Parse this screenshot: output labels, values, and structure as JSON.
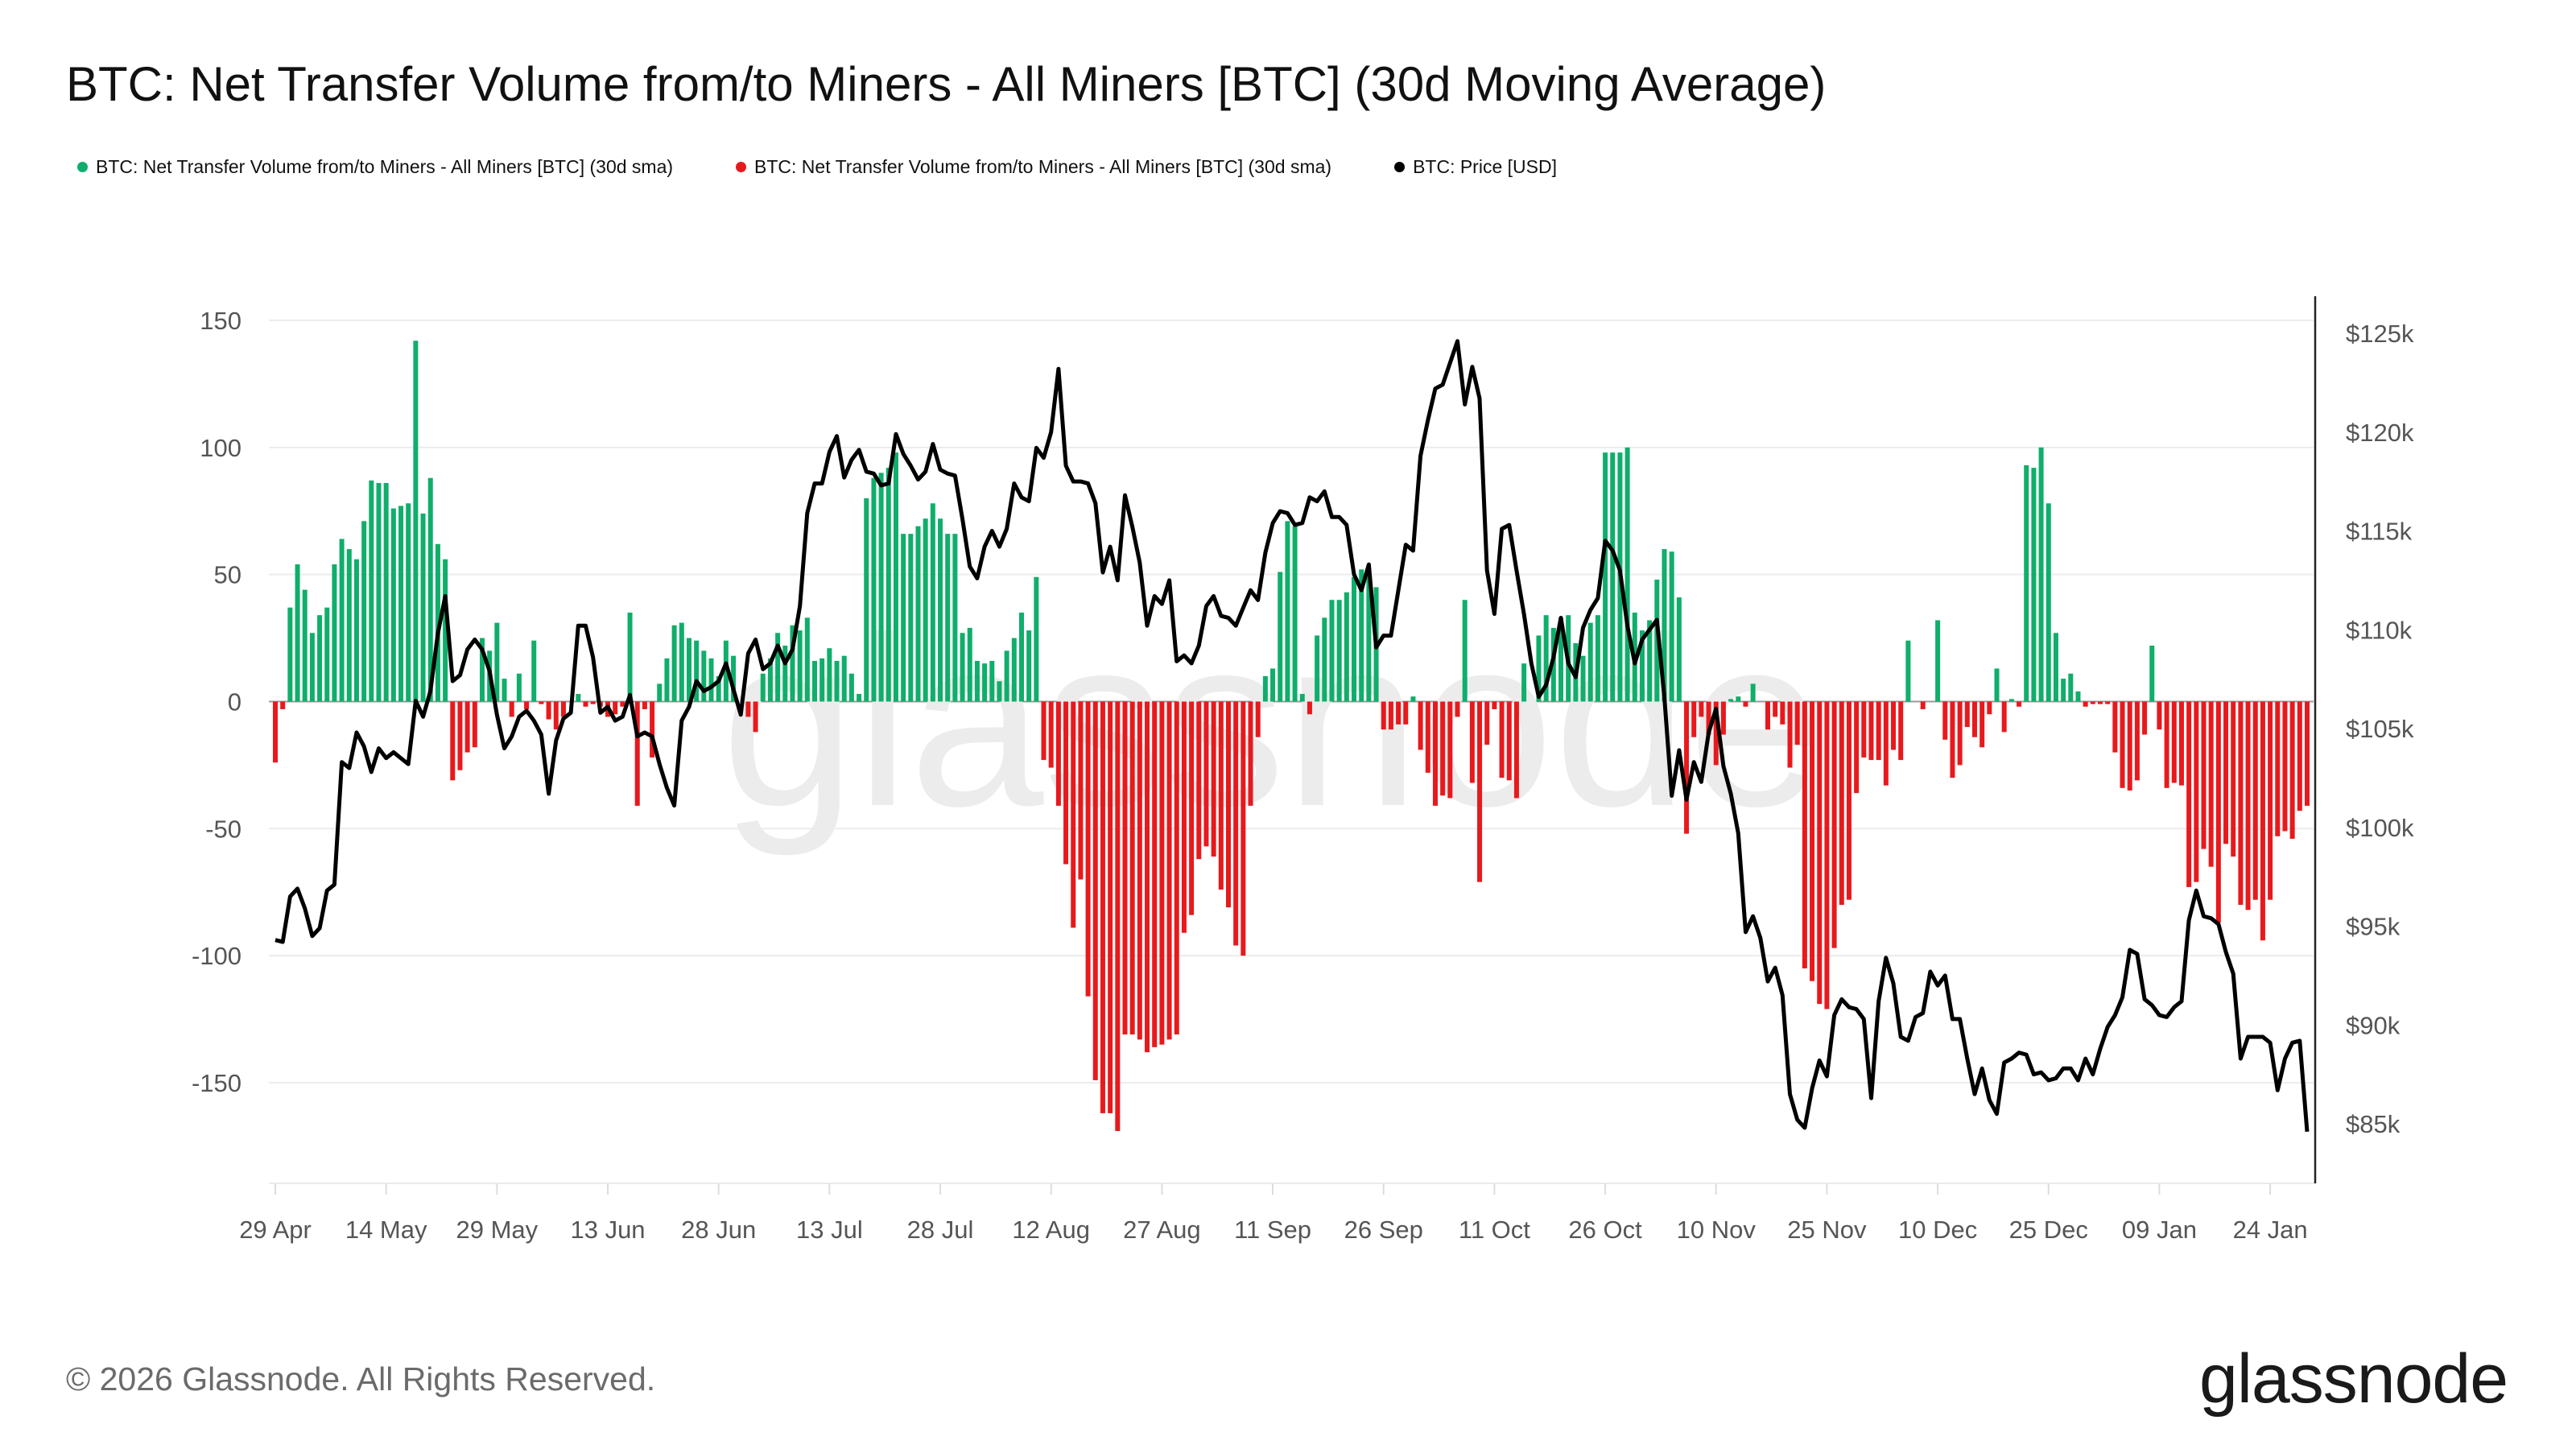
{
  "title": "BTC: Net Transfer Volume from/to Miners - All Miners [BTC] (30d Moving Average)",
  "legend": [
    {
      "label": "BTC: Net Transfer Volume from/to Miners - All Miners [BTC] (30d sma)",
      "color": "#0fae6b"
    },
    {
      "label": "BTC: Net Transfer Volume from/to Miners - All Miners [BTC] (30d sma)",
      "color": "#e8191c"
    },
    {
      "label": "BTC: Price [USD]",
      "color": "#000000"
    }
  ],
  "watermark": "glassnode",
  "footer": "© 2026 Glassnode. All Rights Reserved.",
  "logo": "glassnode",
  "chart_data": {
    "type": "bar+line",
    "title": "BTC: Net Transfer Volume from/to Miners - All Miners [BTC] (30d Moving Average)",
    "grid": true,
    "legend_position": "top-left",
    "x_tick_labels": [
      "29 Apr",
      "14 May",
      "29 May",
      "13 Jun",
      "28 Jun",
      "13 Jul",
      "28 Jul",
      "12 Aug",
      "27 Aug",
      "11 Sep",
      "26 Sep",
      "11 Oct",
      "26 Oct",
      "10 Nov",
      "25 Nov",
      "10 Dec",
      "25 Dec",
      "09 Jan",
      "24 Jan"
    ],
    "y_left": {
      "ticks": [
        150,
        100,
        50,
        0,
        -50,
        -100,
        -150
      ],
      "range": [
        -190,
        150
      ]
    },
    "y_right": {
      "ticks": [
        125000,
        120000,
        115000,
        110000,
        105000,
        100000,
        95000,
        90000,
        85000
      ],
      "tick_labels": [
        "$125k",
        "$120k",
        "$115k",
        "$110k",
        "$105k",
        "$100k",
        "$95k",
        "$90k",
        "$85k"
      ],
      "range": [
        84000,
        126000
      ]
    },
    "positive_color": "#0fae6b",
    "negative_color": "#e8191c",
    "price_color": "#000000",
    "dates": [
      "2025-04-29",
      "2025-04-30",
      "2025-05-01",
      "2025-05-02",
      "2025-05-03",
      "2025-05-04",
      "2025-05-05",
      "2025-05-06",
      "2025-05-07",
      "2025-05-08",
      "2025-05-09",
      "2025-05-10",
      "2025-05-11",
      "2025-05-12",
      "2025-05-13",
      "2025-05-14",
      "2025-05-15",
      "2025-05-16",
      "2025-05-17",
      "2025-05-18",
      "2025-05-19",
      "2025-05-20",
      "2025-05-21",
      "2025-05-22",
      "2025-05-23",
      "2025-05-24",
      "2025-05-25",
      "2025-05-26",
      "2025-05-27",
      "2025-05-28",
      "2025-05-29",
      "2025-05-30",
      "2025-05-31",
      "2025-06-01",
      "2025-06-02",
      "2025-06-03",
      "2025-06-04",
      "2025-06-05",
      "2025-06-06",
      "2025-06-07",
      "2025-06-08",
      "2025-06-09",
      "2025-06-10",
      "2025-06-11",
      "2025-06-12",
      "2025-06-13",
      "2025-06-14",
      "2025-06-15",
      "2025-06-16",
      "2025-06-17",
      "2025-06-18",
      "2025-06-19",
      "2025-06-20",
      "2025-06-21",
      "2025-06-22",
      "2025-06-23",
      "2025-06-24",
      "2025-06-25",
      "2025-06-26",
      "2025-06-27",
      "2025-06-28",
      "2025-06-29",
      "2025-06-30",
      "2025-07-01",
      "2025-07-02",
      "2025-07-03",
      "2025-07-04",
      "2025-07-05",
      "2025-07-06",
      "2025-07-07",
      "2025-07-08",
      "2025-07-09",
      "2025-07-10",
      "2025-07-11",
      "2025-07-12",
      "2025-07-13",
      "2025-07-14",
      "2025-07-15",
      "2025-07-16",
      "2025-07-17",
      "2025-07-18",
      "2025-07-19",
      "2025-07-20",
      "2025-07-21",
      "2025-07-22",
      "2025-07-23",
      "2025-07-24",
      "2025-07-25",
      "2025-07-26",
      "2025-07-27",
      "2025-07-28",
      "2025-07-29",
      "2025-07-30",
      "2025-07-31",
      "2025-08-01",
      "2025-08-02",
      "2025-08-03",
      "2025-08-04",
      "2025-08-05",
      "2025-08-06",
      "2025-08-07",
      "2025-08-08",
      "2025-08-09",
      "2025-08-10",
      "2025-08-11",
      "2025-08-12",
      "2025-08-13",
      "2025-08-14",
      "2025-08-15",
      "2025-08-16",
      "2025-08-17",
      "2025-08-18",
      "2025-08-19",
      "2025-08-20",
      "2025-08-21",
      "2025-08-22",
      "2025-08-23",
      "2025-08-24",
      "2025-08-25",
      "2025-08-26",
      "2025-08-27",
      "2025-08-28",
      "2025-08-29",
      "2025-08-30",
      "2025-08-31",
      "2025-09-01",
      "2025-09-02",
      "2025-09-03",
      "2025-09-04",
      "2025-09-05",
      "2025-09-06",
      "2025-09-07",
      "2025-09-08",
      "2025-09-09",
      "2025-09-10",
      "2025-09-11",
      "2025-09-12",
      "2025-09-13",
      "2025-09-14",
      "2025-09-15",
      "2025-09-16",
      "2025-09-17",
      "2025-09-18",
      "2025-09-19",
      "2025-09-20",
      "2025-09-21",
      "2025-09-22",
      "2025-09-23",
      "2025-09-24",
      "2025-09-25",
      "2025-09-26",
      "2025-09-27",
      "2025-09-28",
      "2025-09-29",
      "2025-09-30",
      "2025-10-01",
      "2025-10-02",
      "2025-10-03",
      "2025-10-04",
      "2025-10-05",
      "2025-10-06",
      "2025-10-07",
      "2025-10-08",
      "2025-10-09",
      "2025-10-10",
      "2025-10-11",
      "2025-10-12",
      "2025-10-13",
      "2025-10-14",
      "2025-10-15",
      "2025-10-16",
      "2025-10-17",
      "2025-10-18",
      "2025-10-19",
      "2025-10-20",
      "2025-10-21",
      "2025-10-22",
      "2025-10-23",
      "2025-10-24",
      "2025-10-25",
      "2025-10-26",
      "2025-10-27",
      "2025-10-28",
      "2025-10-29",
      "2025-10-30",
      "2025-10-31",
      "2025-11-01",
      "2025-11-02",
      "2025-11-03",
      "2025-11-04",
      "2025-11-05",
      "2025-11-06",
      "2025-11-07",
      "2025-11-08",
      "2025-11-09",
      "2025-11-10",
      "2025-11-11",
      "2025-11-12",
      "2025-11-13",
      "2025-11-14",
      "2025-11-15",
      "2025-11-16",
      "2025-11-17",
      "2025-11-18",
      "2025-11-19",
      "2025-11-20",
      "2025-11-21",
      "2025-11-22",
      "2025-11-23",
      "2025-11-24",
      "2025-11-25",
      "2025-11-26",
      "2025-11-27",
      "2025-11-28",
      "2025-11-29",
      "2025-11-30",
      "2025-12-01",
      "2025-12-02",
      "2025-12-03",
      "2025-12-04",
      "2025-12-05",
      "2025-12-06",
      "2025-12-07",
      "2025-12-08",
      "2025-12-09",
      "2025-12-10",
      "2025-12-11",
      "2025-12-12",
      "2025-12-13",
      "2025-12-14",
      "2025-12-15",
      "2025-12-16",
      "2025-12-17",
      "2025-12-18",
      "2025-12-19",
      "2025-12-20",
      "2025-12-21",
      "2025-12-22",
      "2025-12-23",
      "2025-12-24",
      "2025-12-25",
      "2025-12-26",
      "2025-12-27",
      "2025-12-28",
      "2025-12-29",
      "2025-12-30",
      "2025-12-31",
      "2026-01-01",
      "2026-01-02",
      "2026-01-03",
      "2026-01-04",
      "2026-01-05",
      "2026-01-06",
      "2026-01-07",
      "2026-01-08",
      "2026-01-09",
      "2026-01-10",
      "2026-01-11",
      "2026-01-12",
      "2026-01-13",
      "2026-01-14",
      "2026-01-15",
      "2026-01-16",
      "2026-01-17",
      "2026-01-18",
      "2026-01-19",
      "2026-01-20",
      "2026-01-21",
      "2026-01-22",
      "2026-01-23",
      "2026-01-24",
      "2026-01-25",
      "2026-01-26",
      "2026-01-27",
      "2026-01-28",
      "2026-01-29"
    ],
    "net_transfer_volume_btc": [
      -24,
      -3,
      37,
      54,
      44,
      27,
      34,
      37,
      54,
      64,
      60,
      56,
      71,
      87,
      86,
      86,
      76,
      77,
      78,
      142,
      74,
      88,
      62,
      56,
      -31,
      -27,
      -20,
      -18,
      25,
      20,
      31,
      9,
      -6,
      11,
      -3,
      24,
      -1,
      -7,
      -11,
      -6,
      0,
      3,
      -2,
      -1,
      -2,
      -6,
      -5,
      -2,
      35,
      -41,
      -3,
      -22,
      7,
      17,
      30,
      31,
      25,
      24,
      20,
      17,
      10,
      24,
      18,
      0,
      -6,
      -12,
      11,
      17,
      27,
      22,
      30,
      28,
      33,
      16,
      17,
      21,
      16,
      18,
      11,
      3,
      80,
      88,
      90,
      92,
      98,
      66,
      66,
      69,
      72,
      78,
      72,
      66,
      66,
      27,
      29,
      16,
      15,
      16,
      8,
      20,
      25,
      35,
      28,
      49,
      -23,
      -26,
      -41,
      -64,
      -89,
      -70,
      -116,
      -149,
      -162,
      -162,
      -169,
      -131,
      -131,
      -133,
      -138,
      -136,
      -135,
      -133,
      -131,
      -91,
      -84,
      -62,
      -57,
      -61,
      -74,
      -81,
      -96,
      -100,
      -41,
      -14,
      10,
      13,
      51,
      71,
      69,
      3,
      -5,
      26,
      33,
      40,
      40,
      43,
      49,
      52,
      52,
      45,
      -11,
      -11,
      -9,
      -9,
      2,
      -19,
      -28,
      -41,
      -37,
      -38,
      -6,
      40,
      -32,
      -71,
      -17,
      -3,
      -30,
      -31,
      -38,
      15,
      0,
      26,
      34,
      29,
      33,
      34,
      23,
      18,
      31,
      34,
      98,
      98,
      98,
      100,
      35,
      28,
      32,
      48,
      60,
      59,
      41,
      -52,
      -14,
      -6,
      -13,
      -25,
      -13,
      1,
      2,
      -2,
      7,
      0,
      -11,
      -6,
      -9,
      -26,
      -17,
      -105,
      -110,
      -119,
      -121,
      -97,
      -80,
      -78,
      -36,
      -22,
      -23,
      -23,
      -33,
      -19,
      -23,
      24,
      0,
      -3,
      0,
      32,
      -15,
      -30,
      -25,
      -10,
      -14,
      -18,
      -5,
      13,
      -12,
      1,
      -2,
      93,
      92,
      100,
      78,
      27,
      9,
      11,
      4,
      -2,
      -1,
      -1,
      -1,
      -20,
      -34,
      -35,
      -31,
      -13,
      22,
      -11,
      -34,
      -32,
      -33,
      -73,
      -71,
      -58,
      -65,
      -87,
      -56,
      -61,
      -80,
      -82,
      -78,
      -94,
      -78,
      -53,
      -51,
      -54,
      -43,
      -41
    ],
    "price_usd": [
      94300,
      94200,
      96500,
      96900,
      95900,
      94500,
      94900,
      96800,
      97100,
      103300,
      103000,
      104800,
      104100,
      102800,
      104000,
      103500,
      103800,
      103500,
      103200,
      106400,
      105600,
      106900,
      109800,
      111700,
      107400,
      107700,
      109000,
      109500,
      109000,
      107900,
      105700,
      104000,
      104600,
      105600,
      105900,
      105400,
      104700,
      101700,
      104400,
      105500,
      105800,
      110200,
      110200,
      108600,
      105800,
      106100,
      105400,
      105600,
      106700,
      104600,
      104800,
      104600,
      103200,
      102000,
      101100,
      105400,
      106100,
      107400,
      106900,
      107100,
      107400,
      108300,
      107000,
      105700,
      108800,
      109500,
      108000,
      108300,
      109200,
      108300,
      109000,
      111200,
      115900,
      117400,
      117400,
      119000,
      119800,
      117700,
      118600,
      119100,
      118000,
      117900,
      117300,
      117400,
      119900,
      118900,
      118300,
      117600,
      118000,
      119400,
      118100,
      117900,
      117800,
      115600,
      113200,
      112600,
      114200,
      115000,
      114200,
      115100,
      117400,
      116700,
      116500,
      119200,
      118700,
      120000,
      123200,
      118300,
      117500,
      117500,
      117400,
      116400,
      112900,
      114200,
      112500,
      116800,
      115200,
      113400,
      110200,
      111700,
      111300,
      112500,
      108400,
      108700,
      108300,
      109200,
      111200,
      111700,
      110700,
      110600,
      110200,
      111100,
      112000,
      111500,
      113900,
      115400,
      116000,
      115900,
      115300,
      115400,
      116700,
      116500,
      117000,
      115700,
      115700,
      115300,
      112800,
      112000,
      113300,
      109100,
      109700,
      109700,
      112000,
      114300,
      114000,
      118800,
      120600,
      122200,
      122400,
      123500,
      124600,
      121400,
      123300,
      121700,
      113000,
      110800,
      115100,
      115300,
      113000,
      110800,
      108300,
      106600,
      107200,
      108600,
      110600,
      108300,
      107600,
      110100,
      111000,
      111600,
      114500,
      114000,
      113000,
      110200,
      108300,
      109500,
      110000,
      110500,
      106600,
      101600,
      103900,
      101400,
      103300,
      102300,
      104800,
      106000,
      103100,
      101700,
      99700,
      94700,
      95500,
      94400,
      92200,
      92900,
      91500,
      86500,
      85200,
      84800,
      86800,
      88200,
      87400,
      90500,
      91300,
      90900,
      90800,
      90300,
      86300,
      91200,
      93400,
      92100,
      89400,
      89200,
      90400,
      90600,
      92700,
      92000,
      92500,
      90300,
      90300,
      88300,
      86500,
      87800,
      86200,
      85500,
      88100,
      88300,
      88600,
      88500,
      87500,
      87600,
      87200,
      87300,
      87800,
      87800,
      87200,
      88300,
      87500,
      88800,
      89900,
      90500,
      91400,
      93800,
      93600,
      91300,
      91000,
      90500,
      90400,
      90900,
      91200,
      95300,
      96800,
      95500,
      95400,
      95100,
      93700,
      92600,
      88300,
      89400,
      89400,
      89400,
      89100,
      86700,
      88300,
      89100,
      89200,
      84600
    ]
  }
}
